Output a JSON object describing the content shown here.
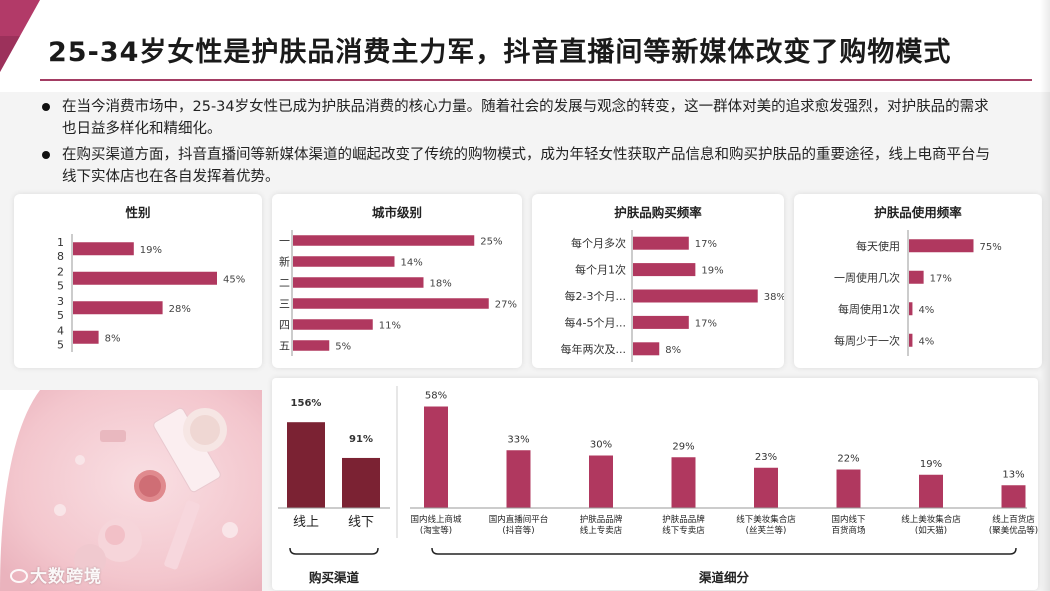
{
  "title": "25-34岁女性是护肤品消费主力军，抖音直播间等新媒体改变了购物模式",
  "bullets": [
    "在当今消费市场中，25-34岁女性已成为护肤品消费的核心力量。随着社会的发展与观念的转变，这一群体对美的追求愈发强烈，对护肤品的需求也日益多样化和精细化。",
    "在购买渠道方面，抖音直播间等新媒体渠道的崛起改变了传统的购物模式，成为年轻女性获取产品信息和购买护肤品的重要途径，线上电商平台与线下实体店也在各自发挥着优势。"
  ],
  "watermark": "大数跨境",
  "colors": {
    "bar_pink": "#b0385f",
    "bar_dark": "#7b2233",
    "title_rule": "#a33d63",
    "corner": "#b23a68"
  },
  "chart_data": [
    {
      "type": "bar",
      "orientation": "horizontal",
      "title": "性别",
      "categories": [
        [
          "1",
          "8"
        ],
        [
          "2",
          "5"
        ],
        [
          "3",
          "5"
        ],
        [
          "4",
          "5"
        ]
      ],
      "values": [
        19,
        45,
        28,
        8
      ],
      "value_labels": [
        "19%",
        "45%",
        "28%",
        "8%"
      ],
      "xlim": [
        0,
        50
      ]
    },
    {
      "type": "bar",
      "orientation": "horizontal",
      "title": "城市级别",
      "categories": [
        [
          "一"
        ],
        [
          "新"
        ],
        [
          "二"
        ],
        [
          "三"
        ],
        [
          "四"
        ],
        [
          "五"
        ]
      ],
      "values": [
        25,
        14,
        18,
        27,
        11,
        5
      ],
      "value_labels": [
        "25%",
        "14%",
        "18%",
        "27%",
        "11%",
        "5%"
      ],
      "xlim": [
        0,
        28
      ]
    },
    {
      "type": "bar",
      "orientation": "horizontal",
      "title": "护肤品购买频率",
      "categories": [
        [
          "每个月多次"
        ],
        [
          "每个月1次"
        ],
        [
          "每2-3个月..."
        ],
        [
          "每4-5个月..."
        ],
        [
          "每年两次及..."
        ]
      ],
      "values": [
        17,
        19,
        38,
        17,
        8
      ],
      "value_labels": [
        "17%",
        "19%",
        "38%",
        "17%",
        "8%"
      ],
      "xlim": [
        0,
        39
      ]
    },
    {
      "type": "bar",
      "orientation": "horizontal",
      "title": "护肤品使用频率",
      "categories": [
        [
          "每天使用"
        ],
        [
          "一周使用几次"
        ],
        [
          "每周使用1次"
        ],
        [
          "每周少于一次"
        ]
      ],
      "values": [
        75,
        17,
        4,
        4
      ],
      "value_labels": [
        "75%",
        "17%",
        "4%",
        "4%"
      ],
      "xlim": [
        0,
        100
      ]
    },
    {
      "type": "bar",
      "orientation": "vertical",
      "group_label": "购买渠道",
      "categories": [
        [
          "线上"
        ],
        [
          "线下"
        ]
      ],
      "values": [
        156,
        91
      ],
      "value_labels": [
        "156%",
        "91%"
      ],
      "ylim": [
        0,
        160
      ]
    },
    {
      "type": "bar",
      "orientation": "vertical",
      "group_label": "渠道细分",
      "categories": [
        [
          "国内线上商城",
          "(淘宝等)"
        ],
        [
          "国内直播间平台",
          "(抖音等)"
        ],
        [
          "护肤品品牌",
          "线上专卖店"
        ],
        [
          "护肤品品牌",
          "线下专卖店"
        ],
        [
          "线下美妆集合店",
          "(丝芙兰等)"
        ],
        [
          "国内线下",
          "百货商场"
        ],
        [
          "线上美妆集合店",
          "(如天猫)"
        ],
        [
          "线上百货店",
          "(聚美优品等)"
        ]
      ],
      "values": [
        58,
        33,
        30,
        29,
        23,
        22,
        19,
        13
      ],
      "value_labels": [
        "58%",
        "33%",
        "30%",
        "29%",
        "23%",
        "22%",
        "19%",
        "13%"
      ],
      "ylim": [
        0,
        60
      ]
    }
  ]
}
